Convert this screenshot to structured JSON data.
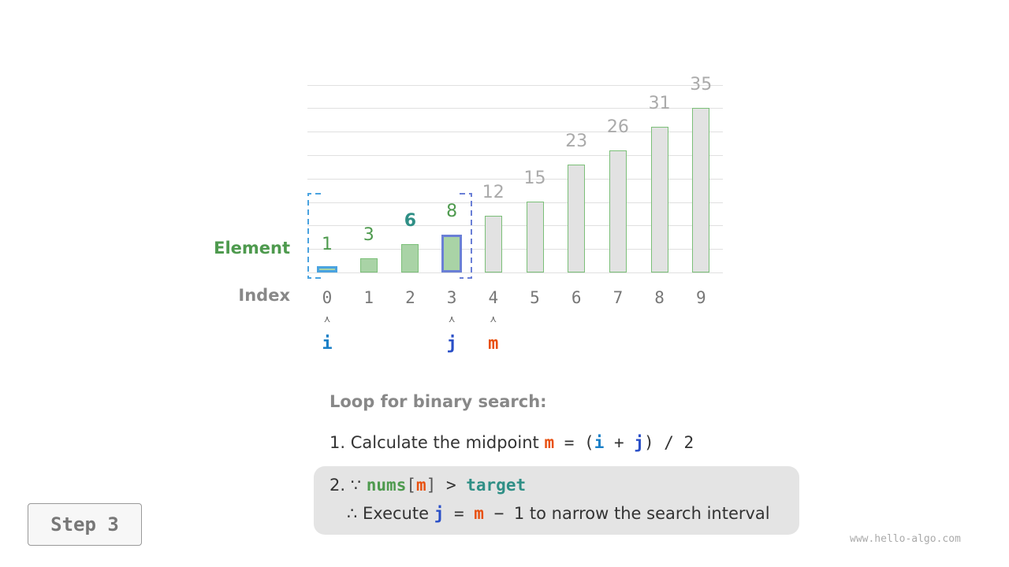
{
  "labels": {
    "element": "Element",
    "index": "Index"
  },
  "array": {
    "values": [
      1,
      3,
      6,
      8,
      12,
      15,
      23,
      26,
      31,
      35
    ],
    "indices": [
      "0",
      "1",
      "2",
      "3",
      "4",
      "5",
      "6",
      "7",
      "8",
      "9"
    ],
    "active_range": [
      0,
      3
    ],
    "target_index": 2
  },
  "pointers": {
    "i": {
      "label": "i",
      "index": 0,
      "color": "#1a7fc7"
    },
    "j": {
      "label": "j",
      "index": 3,
      "color": "#2a4fc7"
    },
    "m": {
      "label": "m",
      "index": 4,
      "color": "#e8500f"
    }
  },
  "colors": {
    "active_bar": "#a9d3a6",
    "inactive_bar": "#e2e2e2",
    "active_text": "#4e9a4e",
    "target_text": "#2f8f86",
    "inactive_text": "#aaaaaa",
    "i_border": "#4aa3e0",
    "j_border": "#6a7fd6"
  },
  "text": {
    "heading": "Loop for binary search:",
    "line1_prefix": "1. Calculate the midpoint",
    "line1_m": "m",
    "line1_eq": " = (",
    "line1_i": "i",
    "line1_plus": " + ",
    "line1_j": "j",
    "line1_rest": ") / 2",
    "line2_prefix": "2. ∵",
    "line2_nums": "nums",
    "line2_lb": "[",
    "line2_m": "m",
    "line2_rb": "]",
    "line2_gt": " > ",
    "line2_target": "target",
    "line3_prefix": "∴ Execute",
    "line3_j": "j",
    "line3_eq": " = ",
    "line3_m": "m",
    "line3_minus": " − ",
    "line3_rest": "1 to narrow the search interval"
  },
  "step_label": "Step 3",
  "watermark": "www.hello-algo.com"
}
